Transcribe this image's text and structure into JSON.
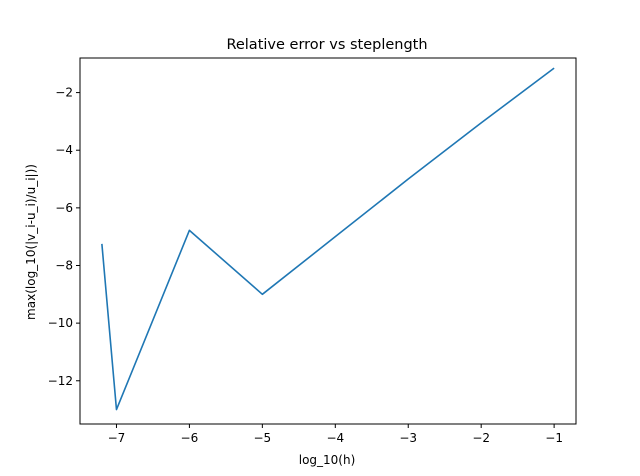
{
  "chart_data": {
    "type": "line",
    "title": "Relative error vs steplength",
    "xlabel": "log_10(h)",
    "ylabel": "max(log_10(|v_i-u_i)/u_i|))",
    "xlim": [
      -7.5,
      -0.7
    ],
    "ylim": [
      -13.5,
      -0.8
    ],
    "xticks": [
      -7,
      -6,
      -5,
      -4,
      -3,
      -2,
      -1
    ],
    "yticks": [
      -12,
      -10,
      -8,
      -6,
      -4,
      -2
    ],
    "grid": false,
    "series": [
      {
        "color": "#1f77b4",
        "x": [
          -7.2,
          -7.0,
          -6.0,
          -5.0,
          -4.0,
          -3.0,
          -2.0,
          -1.0
        ],
        "y": [
          -7.25,
          -13.0,
          -6.78,
          -9.0,
          -7.0,
          -5.0,
          -3.05,
          -1.15
        ]
      }
    ]
  }
}
